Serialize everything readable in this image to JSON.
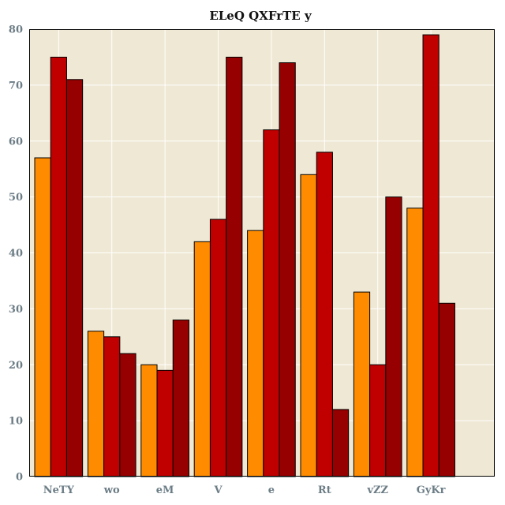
{
  "chart_data": {
    "type": "bar",
    "title": "ELeQ QXFrTE y",
    "xlabel": "",
    "ylabel": "",
    "categories": [
      "NeTY",
      "wo",
      "eM",
      "V",
      "e",
      "Rt",
      "vZZ",
      "GyKr"
    ],
    "series": [
      {
        "color": "#ff8c00",
        "values": [
          57,
          26,
          20,
          42,
          44,
          54,
          33,
          48
        ]
      },
      {
        "color": "#c00000",
        "values": [
          75,
          25,
          19,
          46,
          62,
          58,
          20,
          79
        ]
      },
      {
        "color": "#960000",
        "values": [
          71,
          22,
          28,
          75,
          74,
          12,
          50,
          31
        ]
      }
    ],
    "ylim": [
      0,
      80
    ],
    "yticks": [
      0,
      10,
      20,
      30,
      40,
      50,
      60,
      70,
      80
    ],
    "grid": true,
    "background_color": "#efe8d4",
    "grid_color": "#ffffff",
    "legend": "none"
  }
}
